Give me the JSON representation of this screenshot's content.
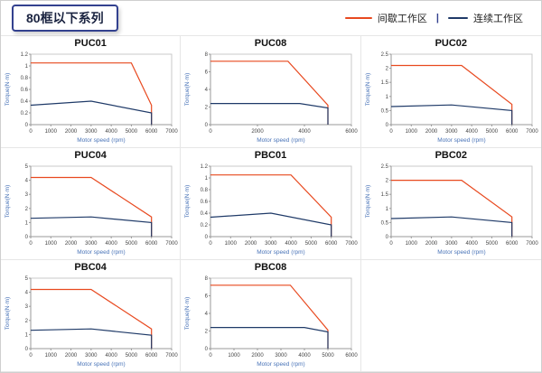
{
  "header": {
    "title": "80框以下系列",
    "legend": [
      {
        "label": "间歇工作区",
        "color": "#e8491f"
      },
      {
        "label": "连续工作区",
        "color": "#1f3a68"
      }
    ],
    "separator": "|"
  },
  "chart_data": [
    {
      "type": "line",
      "title": "PUC01",
      "xlabel": "Motor speed (rpm)",
      "ylabel": "Torque(N·m)",
      "xlim": [
        0,
        7000
      ],
      "ylim": [
        0,
        1.2
      ],
      "xticks": [
        0,
        1000,
        2000,
        3000,
        4000,
        5000,
        6000,
        7000
      ],
      "yticks": [
        0,
        0.2,
        0.4,
        0.6,
        0.8,
        1,
        1.2
      ],
      "series": [
        {
          "name": "间歇工作区",
          "color": "#e8491f",
          "points": [
            [
              0,
              1.05
            ],
            [
              5000,
              1.05
            ],
            [
              6000,
              0.33
            ],
            [
              6000,
              0
            ]
          ]
        },
        {
          "name": "连续工作区",
          "color": "#1f3a68",
          "points": [
            [
              0,
              0.33
            ],
            [
              3000,
              0.4
            ],
            [
              6000,
              0.2
            ],
            [
              6000,
              0
            ]
          ]
        }
      ]
    },
    {
      "type": "line",
      "title": "PUC08",
      "xlabel": "Motor speed (rpm)",
      "ylabel": "Torque(N·m)",
      "xlim": [
        0,
        6000
      ],
      "ylim": [
        0,
        8
      ],
      "xticks": [
        0,
        2000,
        4000,
        6000
      ],
      "yticks": [
        0,
        2,
        4,
        6,
        8
      ],
      "series": [
        {
          "name": "间歇工作区",
          "color": "#e8491f",
          "points": [
            [
              0,
              7.2
            ],
            [
              3300,
              7.2
            ],
            [
              5000,
              2.2
            ],
            [
              5000,
              0
            ]
          ]
        },
        {
          "name": "连续工作区",
          "color": "#1f3a68",
          "points": [
            [
              0,
              2.4
            ],
            [
              3800,
              2.4
            ],
            [
              5000,
              1.9
            ],
            [
              5000,
              0
            ]
          ]
        }
      ]
    },
    {
      "type": "line",
      "title": "PUC02",
      "xlabel": "Motor speed (rpm)",
      "ylabel": "Torque(N·m)",
      "xlim": [
        0,
        7000
      ],
      "ylim": [
        0,
        2.5
      ],
      "xticks": [
        0,
        1000,
        2000,
        3000,
        4000,
        5000,
        6000,
        7000
      ],
      "yticks": [
        0,
        0.5,
        1,
        1.5,
        2,
        2.5
      ],
      "series": [
        {
          "name": "间歇工作区",
          "color": "#e8491f",
          "points": [
            [
              0,
              2.1
            ],
            [
              3500,
              2.1
            ],
            [
              6000,
              0.72
            ],
            [
              6000,
              0
            ]
          ]
        },
        {
          "name": "连续工作区",
          "color": "#1f3a68",
          "points": [
            [
              0,
              0.64
            ],
            [
              3000,
              0.7
            ],
            [
              6000,
              0.5
            ],
            [
              6000,
              0
            ]
          ]
        }
      ]
    },
    {
      "type": "line",
      "title": "PUC04",
      "xlabel": "Motor speed (rpm)",
      "ylabel": "Torque(N·m)",
      "xlim": [
        0,
        7000
      ],
      "ylim": [
        0,
        5
      ],
      "xticks": [
        0,
        1000,
        2000,
        3000,
        4000,
        5000,
        6000,
        7000
      ],
      "yticks": [
        0,
        1,
        2,
        3,
        4,
        5
      ],
      "series": [
        {
          "name": "间歇工作区",
          "color": "#e8491f",
          "points": [
            [
              0,
              4.2
            ],
            [
              3000,
              4.2
            ],
            [
              6000,
              1.4
            ],
            [
              6000,
              0
            ]
          ]
        },
        {
          "name": "连续工作区",
          "color": "#1f3a68",
          "points": [
            [
              0,
              1.3
            ],
            [
              3000,
              1.4
            ],
            [
              6000,
              1.0
            ],
            [
              6000,
              0
            ]
          ]
        }
      ]
    },
    {
      "type": "line",
      "title": "PBC01",
      "xlabel": "Motor speed (rpm)",
      "ylabel": "Torque(N·m)",
      "xlim": [
        0,
        7000
      ],
      "ylim": [
        0,
        1.2
      ],
      "xticks": [
        0,
        1000,
        2000,
        3000,
        4000,
        5000,
        6000,
        7000
      ],
      "yticks": [
        0,
        0.2,
        0.4,
        0.6,
        0.8,
        1,
        1.2
      ],
      "series": [
        {
          "name": "间歇工作区",
          "color": "#e8491f",
          "points": [
            [
              0,
              1.05
            ],
            [
              4000,
              1.05
            ],
            [
              6000,
              0.33
            ],
            [
              6000,
              0
            ]
          ]
        },
        {
          "name": "连续工作区",
          "color": "#1f3a68",
          "points": [
            [
              0,
              0.33
            ],
            [
              3000,
              0.4
            ],
            [
              6000,
              0.2
            ],
            [
              6000,
              0
            ]
          ]
        }
      ]
    },
    {
      "type": "line",
      "title": "PBC02",
      "xlabel": "Motor speed (rpm)",
      "ylabel": "Torque(N·m)",
      "xlim": [
        0,
        7000
      ],
      "ylim": [
        0,
        2.5
      ],
      "xticks": [
        0,
        1000,
        2000,
        3000,
        4000,
        5000,
        6000,
        7000
      ],
      "yticks": [
        0,
        0.5,
        1,
        1.5,
        2,
        2.5
      ],
      "series": [
        {
          "name": "间歇工作区",
          "color": "#e8491f",
          "points": [
            [
              0,
              2.0
            ],
            [
              3500,
              2.0
            ],
            [
              6000,
              0.7
            ],
            [
              6000,
              0
            ]
          ]
        },
        {
          "name": "连续工作区",
          "color": "#1f3a68",
          "points": [
            [
              0,
              0.64
            ],
            [
              3000,
              0.7
            ],
            [
              6000,
              0.5
            ],
            [
              6000,
              0
            ]
          ]
        }
      ]
    },
    {
      "type": "line",
      "title": "PBC04",
      "xlabel": "Motor speed (rpm)",
      "ylabel": "Torque(N·m)",
      "xlim": [
        0,
        7000
      ],
      "ylim": [
        0,
        5
      ],
      "xticks": [
        0,
        1000,
        2000,
        3000,
        4000,
        5000,
        6000,
        7000
      ],
      "yticks": [
        0,
        1,
        2,
        3,
        4,
        5
      ],
      "series": [
        {
          "name": "间歇工作区",
          "color": "#e8491f",
          "points": [
            [
              0,
              4.2
            ],
            [
              3000,
              4.2
            ],
            [
              6000,
              1.4
            ],
            [
              6000,
              0
            ]
          ]
        },
        {
          "name": "连续工作区",
          "color": "#1f3a68",
          "points": [
            [
              0,
              1.3
            ],
            [
              3000,
              1.4
            ],
            [
              6000,
              0.95
            ],
            [
              6000,
              0
            ]
          ]
        }
      ]
    },
    {
      "type": "line",
      "title": "PBC08",
      "xlabel": "Motor speed (rpm)",
      "ylabel": "Torque(N·m)",
      "xlim": [
        0,
        6000
      ],
      "ylim": [
        0,
        8
      ],
      "xticks": [
        0,
        1000,
        2000,
        3000,
        4000,
        5000,
        6000
      ],
      "yticks": [
        0,
        2,
        4,
        6,
        8
      ],
      "series": [
        {
          "name": "间歇工作区",
          "color": "#e8491f",
          "points": [
            [
              0,
              7.2
            ],
            [
              3400,
              7.2
            ],
            [
              5000,
              2.1
            ],
            [
              5000,
              0
            ]
          ]
        },
        {
          "name": "连续工作区",
          "color": "#1f3a68",
          "points": [
            [
              0,
              2.4
            ],
            [
              4000,
              2.4
            ],
            [
              5000,
              1.9
            ],
            [
              5000,
              0
            ]
          ]
        }
      ]
    }
  ]
}
